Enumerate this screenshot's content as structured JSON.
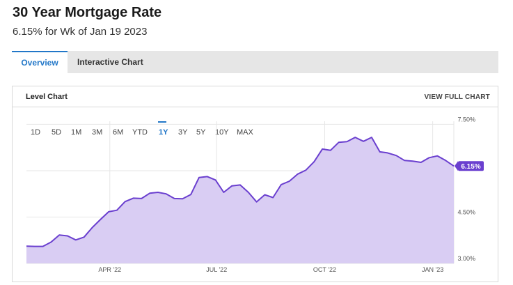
{
  "header": {
    "title": "30 Year Mortgage Rate",
    "subtitle": "6.15% for Wk of Jan 19 2023"
  },
  "tabs": [
    {
      "label": "Overview",
      "active": true
    },
    {
      "label": "Interactive Chart",
      "active": false
    }
  ],
  "panel": {
    "title": "Level Chart",
    "view_full_label": "VIEW FULL CHART"
  },
  "range_buttons": [
    {
      "label": "1D",
      "active": false
    },
    {
      "label": "5D",
      "active": false
    },
    {
      "label": "1M",
      "active": false
    },
    {
      "label": "3M",
      "active": false
    },
    {
      "label": "6M",
      "active": false
    },
    {
      "label": "YTD",
      "active": false
    },
    {
      "label": "1Y",
      "active": true
    },
    {
      "label": "3Y",
      "active": false
    },
    {
      "label": "5Y",
      "active": false
    },
    {
      "label": "10Y",
      "active": false
    },
    {
      "label": "MAX",
      "active": false
    }
  ],
  "colors": {
    "accent": "#2277c8",
    "line": "#6a3fcf",
    "fill": "#d9cdf3",
    "badge": "#6a3fcf"
  },
  "chart_data": {
    "type": "area",
    "x_tick_labels": [
      "APR '22",
      "JUL '22",
      "OCT '22",
      "JAN '23"
    ],
    "y_tick_labels": [
      "7.50%",
      "6.00%",
      "4.50%",
      "3.00%"
    ],
    "y_ticks": [
      7.5,
      6.0,
      4.5,
      3.0
    ],
    "ylim": [
      3.0,
      7.6
    ],
    "grid": true,
    "last_value_label": "6.15%",
    "series": [
      {
        "x": [
          "2022-01-20",
          "2022-01-27",
          "2022-02-03",
          "2022-02-10",
          "2022-02-17",
          "2022-02-24",
          "2022-03-03",
          "2022-03-10",
          "2022-03-17",
          "2022-03-24",
          "2022-03-31",
          "2022-04-07",
          "2022-04-14",
          "2022-04-21",
          "2022-04-28",
          "2022-05-05",
          "2022-05-12",
          "2022-05-19",
          "2022-05-26",
          "2022-06-02",
          "2022-06-09",
          "2022-06-16",
          "2022-06-23",
          "2022-06-30",
          "2022-07-07",
          "2022-07-14",
          "2022-07-21",
          "2022-07-28",
          "2022-08-04",
          "2022-08-11",
          "2022-08-18",
          "2022-08-25",
          "2022-09-01",
          "2022-09-08",
          "2022-09-15",
          "2022-09-22",
          "2022-09-29",
          "2022-10-06",
          "2022-10-13",
          "2022-10-20",
          "2022-10-27",
          "2022-11-03",
          "2022-11-10",
          "2022-11-17",
          "2022-11-23",
          "2022-12-01",
          "2022-12-08",
          "2022-12-15",
          "2022-12-22",
          "2022-12-29",
          "2023-01-05",
          "2023-01-12",
          "2023-01-19"
        ],
        "values": [
          3.56,
          3.55,
          3.55,
          3.69,
          3.92,
          3.89,
          3.76,
          3.85,
          4.16,
          4.42,
          4.67,
          4.72,
          5.0,
          5.11,
          5.1,
          5.27,
          5.3,
          5.25,
          5.1,
          5.09,
          5.23,
          5.78,
          5.81,
          5.7,
          5.3,
          5.51,
          5.54,
          5.3,
          4.99,
          5.22,
          5.13,
          5.55,
          5.66,
          5.89,
          6.02,
          6.29,
          6.7,
          6.66,
          6.92,
          6.94,
          7.08,
          6.95,
          7.08,
          6.61,
          6.58,
          6.49,
          6.33,
          6.31,
          6.27,
          6.42,
          6.48,
          6.33,
          6.15
        ]
      }
    ]
  }
}
